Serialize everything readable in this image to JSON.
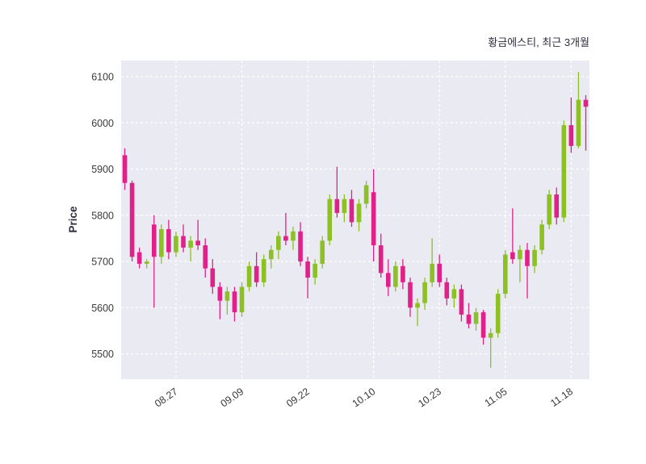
{
  "chart_data": {
    "type": "candlestick",
    "title": "황금에스티, 최근 3개월",
    "ylabel": "Price",
    "ylim": [
      5445,
      6135
    ],
    "yticks": [
      5500,
      5600,
      5700,
      5800,
      5900,
      6000,
      6100
    ],
    "xticks": [
      {
        "index": 7,
        "label": "08.27"
      },
      {
        "index": 16,
        "label": "09.09"
      },
      {
        "index": 25,
        "label": "09.22"
      },
      {
        "index": 34,
        "label": "10.10"
      },
      {
        "index": 43,
        "label": "10.23"
      },
      {
        "index": 52,
        "label": "11.05"
      },
      {
        "index": 61,
        "label": "11.18"
      }
    ],
    "grid": {
      "show": true,
      "color": "#ffffff",
      "style": "dashed"
    },
    "plot_bg": "#eaeaf2",
    "up_color": "#8cc024",
    "down_color": "#e0218a",
    "legend": "none",
    "candles": [
      [
        5930,
        5945,
        5855,
        5870
      ],
      [
        5870,
        5875,
        5700,
        5710
      ],
      [
        5720,
        5730,
        5685,
        5695
      ],
      [
        5695,
        5705,
        5685,
        5700
      ],
      [
        5780,
        5800,
        5600,
        5710
      ],
      [
        5710,
        5780,
        5695,
        5770
      ],
      [
        5770,
        5790,
        5705,
        5720
      ],
      [
        5720,
        5765,
        5710,
        5755
      ],
      [
        5755,
        5780,
        5720,
        5730
      ],
      [
        5730,
        5755,
        5700,
        5745
      ],
      [
        5745,
        5790,
        5725,
        5735
      ],
      [
        5735,
        5750,
        5665,
        5685
      ],
      [
        5685,
        5705,
        5630,
        5645
      ],
      [
        5645,
        5655,
        5575,
        5615
      ],
      [
        5615,
        5645,
        5585,
        5635
      ],
      [
        5635,
        5645,
        5570,
        5590
      ],
      [
        5590,
        5655,
        5580,
        5645
      ],
      [
        5645,
        5700,
        5635,
        5690
      ],
      [
        5690,
        5720,
        5645,
        5655
      ],
      [
        5655,
        5715,
        5645,
        5705
      ],
      [
        5705,
        5735,
        5685,
        5725
      ],
      [
        5725,
        5765,
        5705,
        5755
      ],
      [
        5755,
        5805,
        5735,
        5745
      ],
      [
        5745,
        5775,
        5725,
        5765
      ],
      [
        5765,
        5785,
        5690,
        5700
      ],
      [
        5700,
        5710,
        5620,
        5665
      ],
      [
        5665,
        5705,
        5650,
        5695
      ],
      [
        5695,
        5755,
        5685,
        5745
      ],
      [
        5745,
        5845,
        5735,
        5835
      ],
      [
        5835,
        5905,
        5795,
        5805
      ],
      [
        5805,
        5845,
        5785,
        5835
      ],
      [
        5835,
        5855,
        5775,
        5785
      ],
      [
        5785,
        5835,
        5765,
        5825
      ],
      [
        5825,
        5875,
        5815,
        5865
      ],
      [
        5850,
        5900,
        5700,
        5735
      ],
      [
        5735,
        5760,
        5665,
        5675
      ],
      [
        5675,
        5705,
        5625,
        5645
      ],
      [
        5645,
        5700,
        5635,
        5690
      ],
      [
        5690,
        5705,
        5640,
        5655
      ],
      [
        5655,
        5665,
        5580,
        5600
      ],
      [
        5600,
        5620,
        5560,
        5610
      ],
      [
        5610,
        5665,
        5595,
        5655
      ],
      [
        5655,
        5750,
        5645,
        5695
      ],
      [
        5695,
        5715,
        5645,
        5655
      ],
      [
        5655,
        5665,
        5605,
        5620
      ],
      [
        5620,
        5650,
        5600,
        5640
      ],
      [
        5640,
        5650,
        5570,
        5585
      ],
      [
        5585,
        5610,
        5555,
        5565
      ],
      [
        5565,
        5600,
        5550,
        5590
      ],
      [
        5590,
        5595,
        5520,
        5535
      ],
      [
        5535,
        5555,
        5470,
        5545
      ],
      [
        5545,
        5640,
        5535,
        5630
      ],
      [
        5630,
        5725,
        5620,
        5715
      ],
      [
        5720,
        5815,
        5695,
        5705
      ],
      [
        5705,
        5735,
        5655,
        5725
      ],
      [
        5725,
        5740,
        5620,
        5690
      ],
      [
        5690,
        5735,
        5675,
        5725
      ],
      [
        5725,
        5790,
        5715,
        5780
      ],
      [
        5780,
        5855,
        5770,
        5845
      ],
      [
        5845,
        5860,
        5780,
        5795
      ],
      [
        5795,
        6005,
        5785,
        5995
      ],
      [
        5995,
        6055,
        5935,
        5950
      ],
      [
        5950,
        6110,
        5945,
        6050
      ],
      [
        6050,
        6060,
        5940,
        6035
      ]
    ]
  }
}
